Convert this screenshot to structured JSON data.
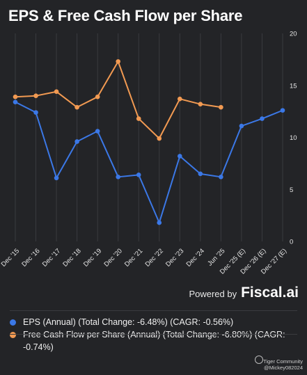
{
  "title": "EPS & Free Cash Flow per Share",
  "powered_by": {
    "label": "Powered by",
    "brand": "Fiscal.ai"
  },
  "legend": {
    "items": [
      {
        "text": "EPS (Annual) (Total Change: -6.48%) (CAGR: -0.56%)",
        "color": "#3b78e7"
      },
      {
        "text": "Free Cash Flow per Share (Annual) (Total Change: -6.80%) (CAGR: -0.74%)",
        "color": "#f29a52"
      }
    ]
  },
  "watermark": {
    "community": "Tiger Community",
    "user": "@Mickey082024"
  },
  "chart_data": {
    "type": "line",
    "categories": [
      "Dec '15",
      "Dec '16",
      "Dec '17",
      "Dec '18",
      "Dec '19",
      "Dec '20",
      "Dec '21",
      "Dec '22",
      "Dec '23",
      "Dec '24",
      "Jun '25",
      "Dec '25 (E)",
      "Dec '26 (E)",
      "Dec '27 (E)"
    ],
    "ylim": [
      0,
      20
    ],
    "yticks": [
      0,
      5,
      10,
      15,
      20
    ],
    "y_axis_position": "right",
    "grid": "vertical",
    "series": [
      {
        "name": "EPS (Annual)",
        "color": "#3b78e7",
        "values": [
          13.4,
          12.4,
          6.1,
          9.6,
          10.6,
          6.2,
          6.4,
          1.8,
          8.2,
          6.5,
          6.2,
          11.1,
          11.8,
          12.6
        ]
      },
      {
        "name": "Free Cash Flow per Share (Annual)",
        "color": "#f29a52",
        "values": [
          13.9,
          14.0,
          14.4,
          12.9,
          13.9,
          17.3,
          11.8,
          9.9,
          13.7,
          13.2,
          12.9,
          null,
          null,
          null
        ]
      }
    ]
  }
}
